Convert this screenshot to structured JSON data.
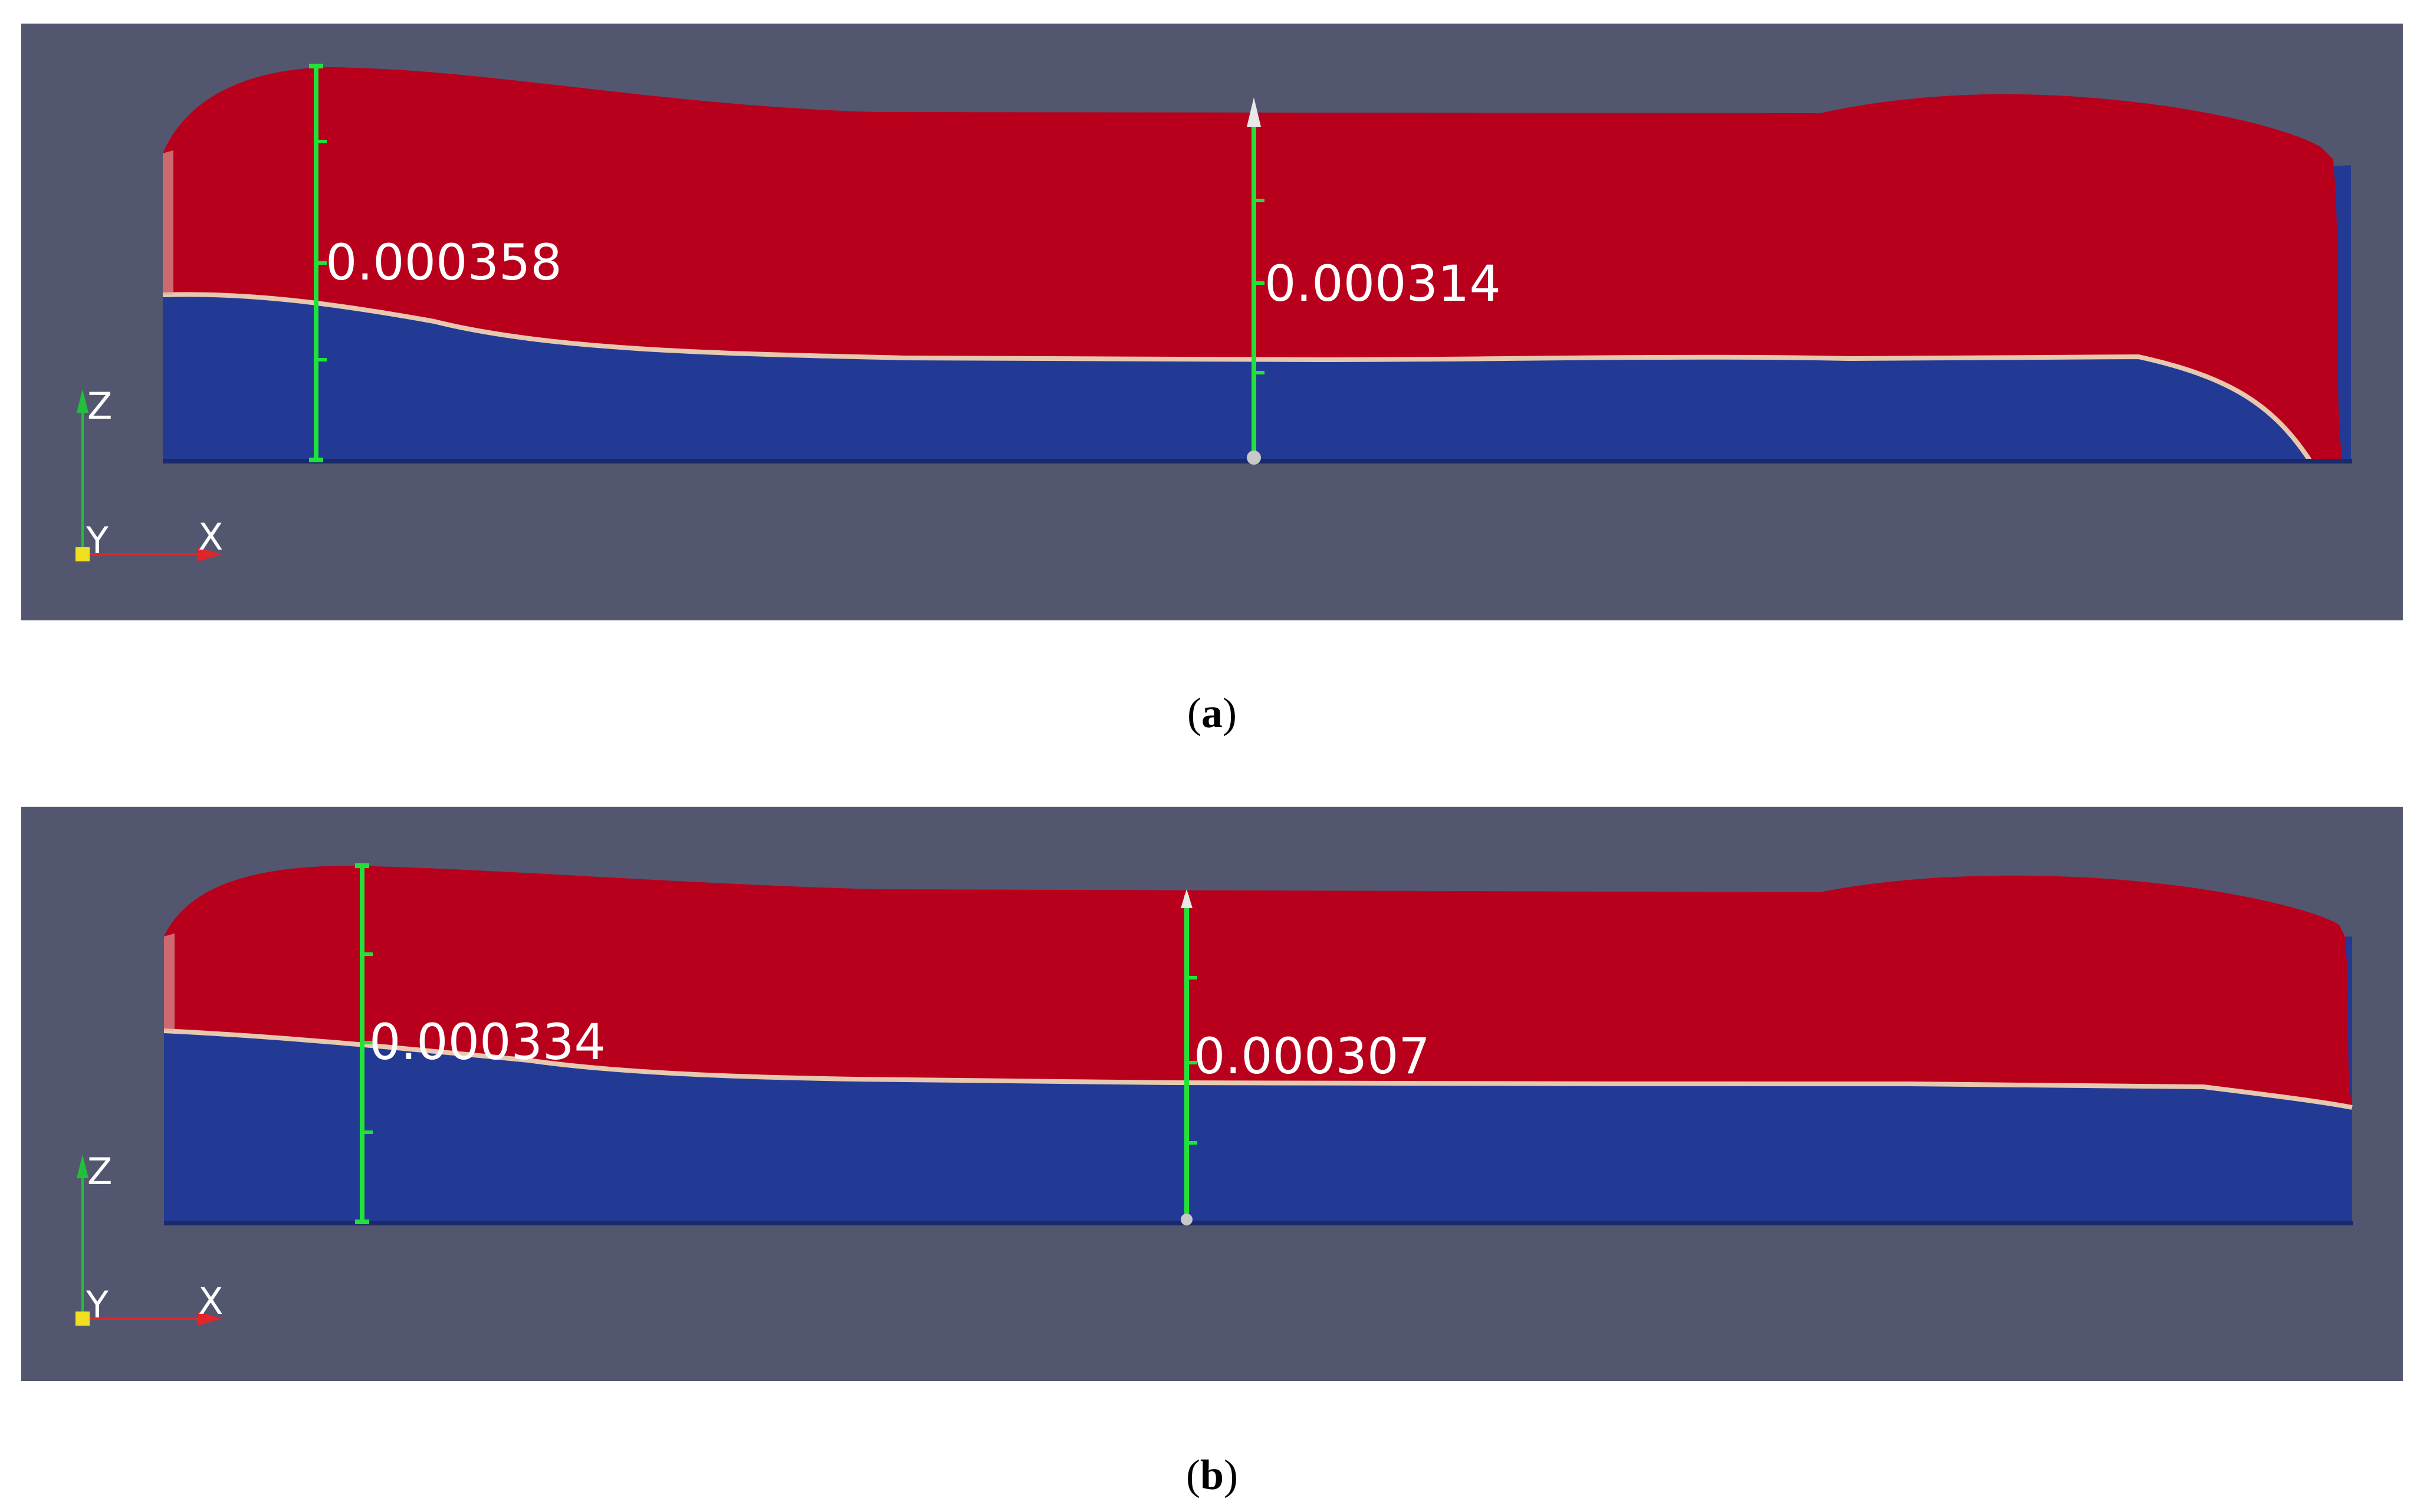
{
  "colors": {
    "background": "#52576f",
    "upper_phase": "#b8001c",
    "lower_phase": "#233a94",
    "interface": "#e8c9b0",
    "ruler": "#22e23a",
    "axis_x": "#e0262a",
    "axis_z": "#22c03a",
    "axis_origin": "#f0e020"
  },
  "panels": [
    {
      "caption_open": "(",
      "caption_letter": "a",
      "caption_close": ")",
      "measurements": [
        {
          "label": "0.000358"
        },
        {
          "label": "0.000314"
        }
      ],
      "axes": {
        "z_label": "Z",
        "y_label": "Y",
        "x_label": "X"
      }
    },
    {
      "caption_open": "(",
      "caption_letter": "b",
      "caption_close": ")",
      "measurements": [
        {
          "label": "0.000334"
        },
        {
          "label": "0.000307"
        }
      ],
      "axes": {
        "z_label": "Z",
        "y_label": "Y",
        "x_label": "X"
      }
    }
  ]
}
